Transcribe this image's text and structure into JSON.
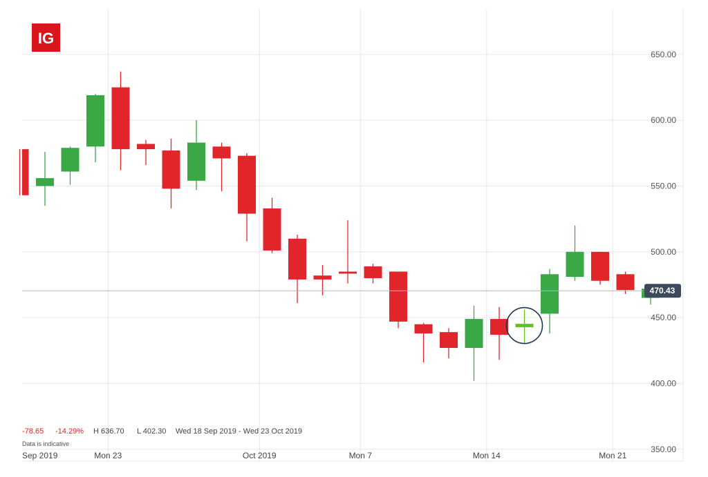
{
  "logo": {
    "text": "IG",
    "color": "#d9161c"
  },
  "colors": {
    "up": "#3aa845",
    "down": "#e0262b",
    "grid": "#e6e6e6",
    "current_line": "#b5b5b5",
    "label_bg": "#3d4a5c",
    "highlight_up": "#66c21a",
    "circle": "#1f3354"
  },
  "stats": {
    "change": "-78.65",
    "change_pct": "-14.29%",
    "high": "H 636.70",
    "low": "L 402.30",
    "range": "Wed 18 Sep 2019 - Wed 23 Oct 2019"
  },
  "note": "Data is indicative",
  "current_price": {
    "value": 470.43,
    "label": "470.43"
  },
  "chart_data": {
    "type": "candlestick",
    "y_ticks": [
      "650.00",
      "600.00",
      "550.00",
      "500.00",
      "450.00",
      "400.00",
      "350.00"
    ],
    "y_tick_values": [
      650,
      600,
      550,
      500,
      450,
      400,
      350
    ],
    "ylim": [
      341,
      684
    ],
    "x_ticks": [
      {
        "label": "Sep 2019",
        "index": -0.3
      },
      {
        "label": "Mon 23",
        "index": 3.5
      },
      {
        "label": "Oct 2019",
        "index": 9.5
      },
      {
        "label": "Mon 7",
        "index": 13.5
      },
      {
        "label": "Mon 14",
        "index": 18.5
      },
      {
        "label": "Mon 21",
        "index": 23.5
      }
    ],
    "candles": [
      {
        "o": 578,
        "h": 578,
        "l": 543,
        "c": 543
      },
      {
        "o": 550,
        "h": 576,
        "l": 535,
        "c": 556
      },
      {
        "o": 561,
        "h": 580,
        "l": 551,
        "c": 579
      },
      {
        "o": 580,
        "h": 620,
        "l": 568,
        "c": 619
      },
      {
        "o": 625,
        "h": 637,
        "l": 562,
        "c": 578
      },
      {
        "o": 582,
        "h": 585,
        "l": 566,
        "c": 578
      },
      {
        "o": 577,
        "h": 586,
        "l": 533,
        "c": 548
      },
      {
        "o": 554,
        "h": 600,
        "l": 547,
        "c": 583
      },
      {
        "o": 580,
        "h": 583,
        "l": 546,
        "c": 571
      },
      {
        "o": 573,
        "h": 575,
        "l": 508,
        "c": 529
      },
      {
        "o": 533,
        "h": 541,
        "l": 499,
        "c": 501
      },
      {
        "o": 510,
        "h": 513,
        "l": 461,
        "c": 479
      },
      {
        "o": 482,
        "h": 490,
        "l": 467,
        "c": 479
      },
      {
        "o": 485,
        "h": 524,
        "l": 476,
        "c": 484
      },
      {
        "o": 489,
        "h": 491,
        "l": 476,
        "c": 480
      },
      {
        "o": 485,
        "h": 485,
        "l": 442,
        "c": 447
      },
      {
        "o": 445,
        "h": 446,
        "l": 416,
        "c": 438
      },
      {
        "o": 439,
        "h": 442,
        "l": 419,
        "c": 427
      },
      {
        "o": 427,
        "h": 459,
        "l": 402,
        "c": 449
      },
      {
        "o": 449,
        "h": 458,
        "l": 418,
        "c": 437
      },
      {
        "o": 443,
        "h": 456,
        "l": 430,
        "c": 445,
        "highlight": true
      },
      {
        "o": 453,
        "h": 487,
        "l": 438,
        "c": 483
      },
      {
        "o": 481,
        "h": 520,
        "l": 478,
        "c": 500
      },
      {
        "o": 500,
        "h": 500,
        "l": 475,
        "c": 478
      },
      {
        "o": 483,
        "h": 485,
        "l": 468,
        "c": 471
      },
      {
        "o": 465,
        "h": 472,
        "l": 460,
        "c": 472
      }
    ]
  }
}
